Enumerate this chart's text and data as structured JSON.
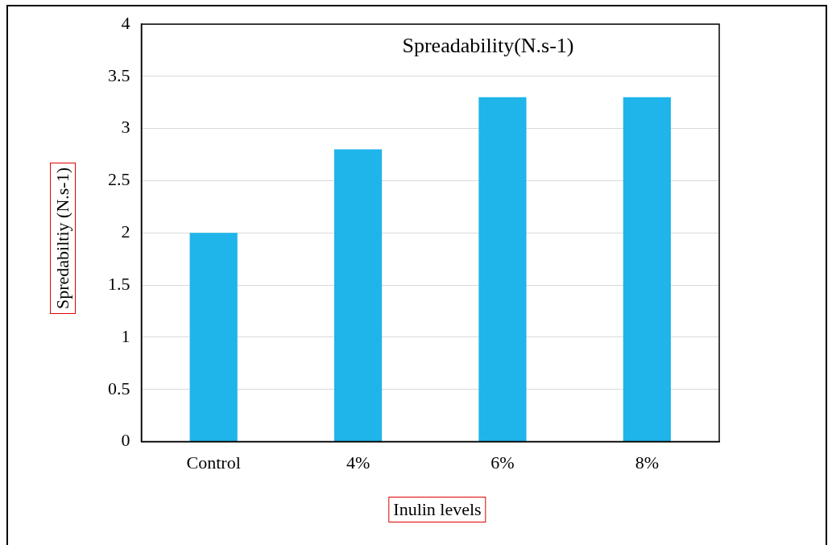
{
  "chart_data": {
    "type": "bar",
    "title": "Spreadability(N.s-1)",
    "xlabel": "Inulin levels",
    "ylabel": "Spredabiltiy  (N.s-1)",
    "categories": [
      "Control",
      "4%",
      "6%",
      "8%"
    ],
    "values": [
      2.0,
      2.8,
      3.3,
      3.3
    ],
    "color": "#1fb4ea",
    "ylim": [
      0,
      4
    ],
    "yticks": [
      0,
      0.5,
      1,
      1.5,
      2,
      2.5,
      3,
      3.5,
      4
    ],
    "grid": "y"
  }
}
